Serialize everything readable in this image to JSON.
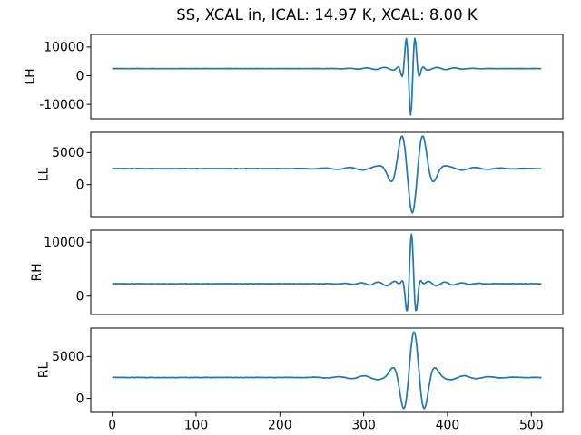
{
  "figure": {
    "background": "#ffffff",
    "line_color": "#1f77b4",
    "axes_color": "#000000"
  },
  "chart_data": {
    "type": "line",
    "title": "SS, XCAL in, ICAL: 14.97 K, XCAL: 8.00 K",
    "grid": false,
    "x_range": [
      0,
      512
    ],
    "x_ticks": [
      0,
      100,
      200,
      300,
      400,
      500
    ],
    "n_points": 513,
    "subplots": [
      {
        "ylabel": "LH",
        "y_ticks": [
          -10000,
          0,
          10000
        ],
        "baseline": 2500,
        "approx_peak": 13000,
        "approx_trough": -13000,
        "burst": {
          "center": 356,
          "amplitude": 15600,
          "period": 11,
          "width": 6,
          "phase_deg": 180
        },
        "ripple": {
          "amplitude": 550,
          "period": 21,
          "width": 40
        },
        "noise_amplitude": 70
      },
      {
        "ylabel": "LL",
        "y_ticks": [
          0,
          5000
        ],
        "baseline": 2500,
        "approx_peak": 7100,
        "approx_trough": -4000,
        "burst": {
          "center": 358,
          "amplitude": 6500,
          "period": 26,
          "width": 16,
          "phase_deg": 180
        },
        "ripple": {
          "amplitude": 380,
          "period": 30,
          "width": 60
        },
        "noise_amplitude": 50
      },
      {
        "ylabel": "RH",
        "y_ticks": [
          0,
          10000
        ],
        "baseline": 2300,
        "approx_peak": 11200,
        "approx_trough": -2500,
        "burst": {
          "center": 357,
          "amplitude": 8700,
          "period": 12,
          "width": 5.5,
          "phase_deg": 0
        },
        "ripple": {
          "amplitude": 500,
          "period": 20,
          "width": 40
        },
        "noise_amplitude": 70
      },
      {
        "ylabel": "RL",
        "y_ticks": [
          0,
          5000
        ],
        "baseline": 2500,
        "approx_peak": 7900,
        "approx_trough": -1100,
        "burst": {
          "center": 360,
          "amplitude": 5100,
          "period": 26,
          "width": 14,
          "phase_deg": 0
        },
        "ripple": {
          "amplitude": 350,
          "period": 30,
          "width": 55
        },
        "noise_amplitude": 50
      }
    ]
  }
}
